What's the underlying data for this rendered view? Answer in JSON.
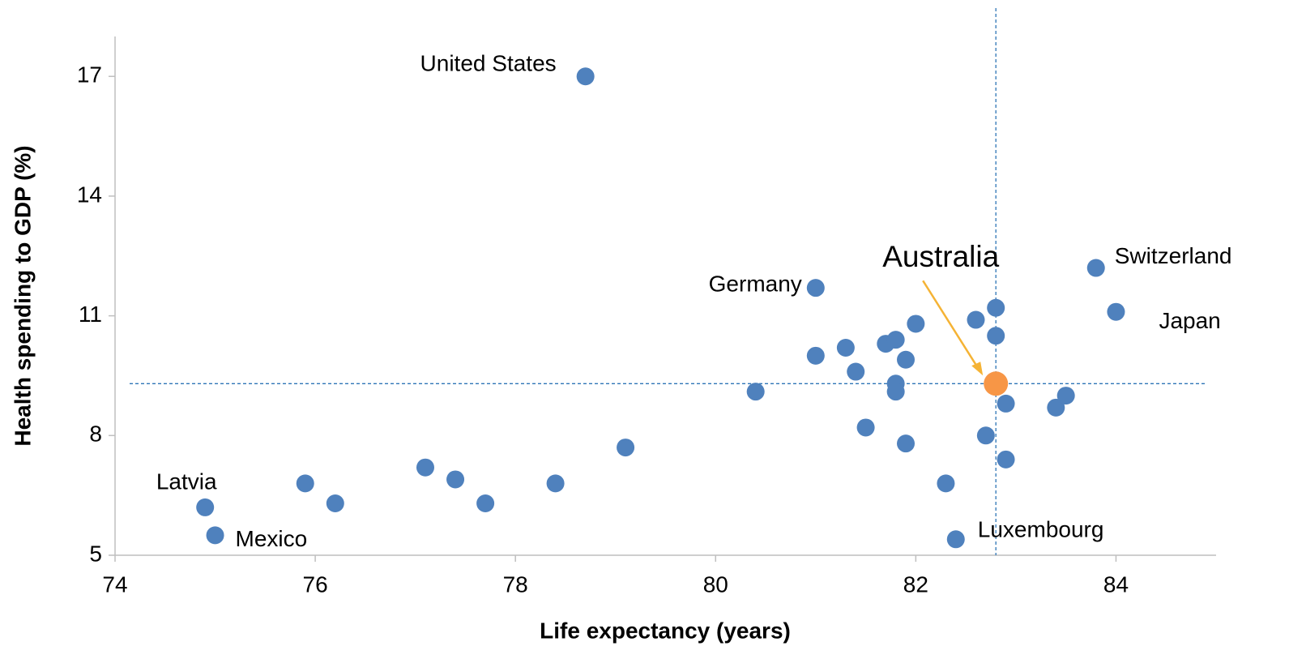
{
  "chart_data": {
    "type": "scatter",
    "xlabel": "Life expectancy (years)",
    "ylabel": "Health spending to GDP (%)",
    "xlim": [
      74,
      85
    ],
    "xticks": [
      74,
      76,
      78,
      80,
      82,
      84
    ],
    "ylim": [
      5,
      18
    ],
    "yticks": [
      5,
      8,
      11,
      14,
      17
    ],
    "vline": 82.8,
    "hline": 9.3,
    "series": [
      {
        "color": "#4f81bd",
        "x": [
          78.7,
          81.0,
          83.8,
          84.0,
          74.9,
          75.0,
          82.4,
          75.9,
          76.2,
          77.1,
          77.4,
          77.7,
          78.4,
          79.1,
          80.4,
          81.0,
          81.3,
          81.4,
          81.5,
          81.7,
          81.8,
          82.0,
          81.9,
          81.8,
          81.8,
          81.9,
          82.3,
          82.6,
          82.8,
          82.8,
          82.7,
          82.9,
          82.9,
          83.4,
          83.5
        ],
        "values": [
          17.0,
          11.7,
          12.2,
          11.1,
          6.2,
          5.5,
          5.4,
          6.8,
          6.3,
          7.2,
          6.9,
          6.3,
          6.8,
          7.7,
          9.1,
          10.0,
          10.2,
          9.6,
          8.2,
          10.3,
          10.4,
          10.8,
          9.9,
          9.3,
          9.1,
          7.8,
          6.8,
          10.9,
          11.2,
          10.5,
          8.0,
          8.8,
          7.4,
          8.7,
          9.0
        ],
        "labels": [
          "United States",
          "Germany",
          "Switzerland",
          "Japan",
          "Latvia",
          "Mexico",
          "Luxembourg",
          null,
          null,
          null,
          null,
          null,
          null,
          null,
          null,
          null,
          null,
          null,
          null,
          null,
          null,
          null,
          null,
          null,
          null,
          null,
          null,
          null,
          null,
          null,
          null,
          null,
          null,
          null,
          null
        ]
      },
      {
        "color": "#f79646",
        "x": [
          82.8
        ],
        "values": [
          9.3
        ],
        "labels": [
          "Australia"
        ]
      }
    ]
  }
}
